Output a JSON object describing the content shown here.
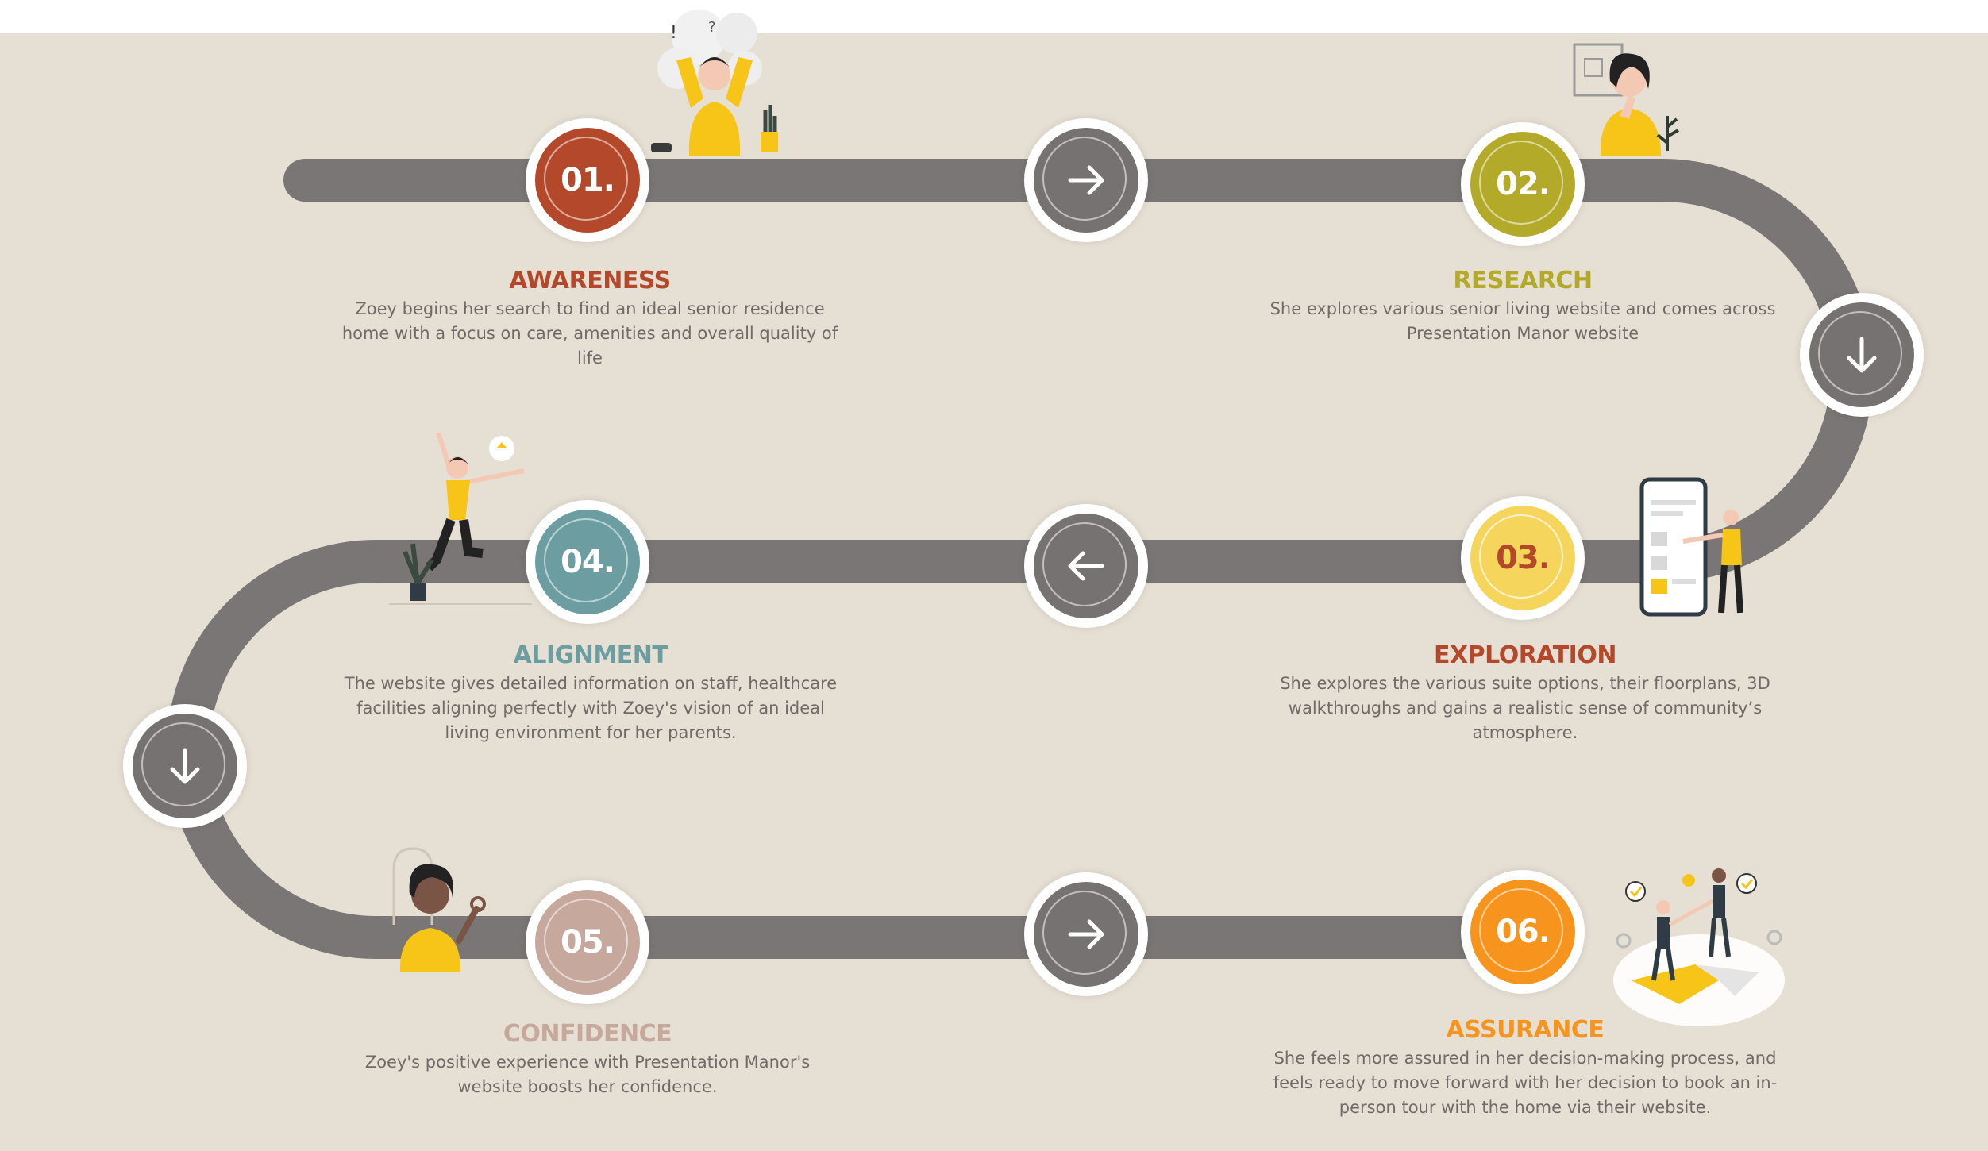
{
  "colors": {
    "background": "#e6dfd3",
    "track": "#7a7675",
    "arrow_disc": "#767271"
  },
  "steps": [
    {
      "number": "01.",
      "title": "AWARENESS",
      "color": "#b3492a",
      "text_color": "#ffffff",
      "description": "Zoey begins her search to find an ideal senior residence home with a focus on care, amenities and overall quality of life"
    },
    {
      "number": "02.",
      "title": "RESEARCH",
      "color": "#b4aa2a",
      "text_color": "#ffffff",
      "description": "She explores various senior living website and comes across Presentation Manor website"
    },
    {
      "number": "03.",
      "title": "EXPLORATION",
      "color": "#f6d55c",
      "text_color": "#b3492a",
      "description": "She explores the various suite options, their floorplans, 3D walkthroughs and gains a realistic sense of community’s atmosphere."
    },
    {
      "number": "04.",
      "title": "ALIGNMENT",
      "color": "#6c9ea1",
      "text_color": "#ffffff",
      "description": "The website gives detailed information on staff, healthcare facilities  aligning perfectly with Zoey's vision of an ideal living environment for her parents."
    },
    {
      "number": "05.",
      "title": "CONFIDENCE",
      "color": "#c7a89c",
      "text_color": "#ffffff",
      "description": "Zoey's positive experience with Presentation Manor's website boosts her confidence."
    },
    {
      "number": "06.",
      "title": "ASSURANCE",
      "color": "#f7941d",
      "text_color": "#ffffff",
      "description": "She feels more assured in her decision-making process, and feels ready to move forward with her decision to book an in-person tour with the home via their website."
    }
  ],
  "arrows": [
    "arrow-right-icon",
    "arrow-down-icon",
    "arrow-left-icon",
    "arrow-down-icon",
    "arrow-right-icon"
  ]
}
